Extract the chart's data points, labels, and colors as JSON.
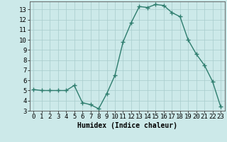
{
  "x": [
    0,
    1,
    2,
    3,
    4,
    5,
    6,
    7,
    8,
    9,
    10,
    11,
    12,
    13,
    14,
    15,
    16,
    17,
    18,
    19,
    20,
    21,
    22,
    23
  ],
  "y": [
    5.1,
    5.0,
    5.0,
    5.0,
    5.0,
    5.5,
    3.8,
    3.6,
    3.2,
    4.7,
    6.5,
    9.8,
    11.7,
    13.3,
    13.2,
    13.5,
    13.4,
    12.7,
    12.3,
    10.0,
    8.6,
    7.5,
    5.9,
    3.4
  ],
  "line_color": "#2e7d6e",
  "marker": "D",
  "marker_size": 2.0,
  "line_width": 1.0,
  "bg_color": "#cce9e9",
  "grid_color": "#a8cccc",
  "xlabel": "Humidex (Indice chaleur)",
  "xlim": [
    -0.5,
    23.5
  ],
  "ylim": [
    3,
    13.8
  ],
  "yticks": [
    3,
    4,
    5,
    6,
    7,
    8,
    9,
    10,
    11,
    12,
    13
  ],
  "xtick_labels": [
    "0",
    "1",
    "2",
    "3",
    "4",
    "5",
    "6",
    "7",
    "8",
    "9",
    "10",
    "11",
    "12",
    "13",
    "14",
    "15",
    "16",
    "17",
    "18",
    "19",
    "20",
    "21",
    "22",
    "23"
  ],
  "xlabel_fontsize": 7,
  "tick_fontsize": 6.5
}
